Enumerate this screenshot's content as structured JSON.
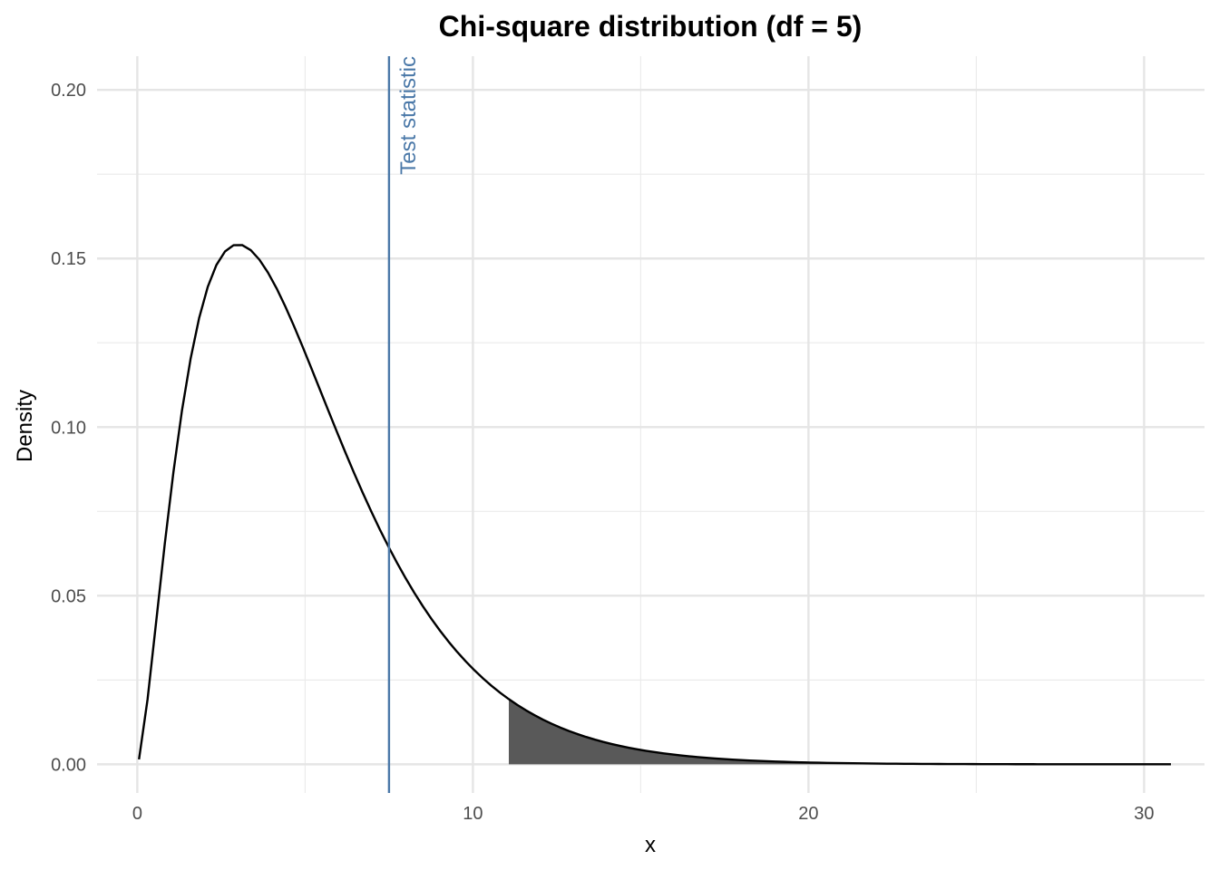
{
  "chart_data": {
    "type": "area",
    "title": "Chi-square distribution (df = 5)",
    "xlabel": "x",
    "ylabel": "Density",
    "df": 5,
    "xlim": [
      -1.2,
      31.8
    ],
    "ylim": [
      -0.0085,
      0.21
    ],
    "x_ticks": [
      0,
      10,
      20,
      30
    ],
    "x_tick_labels": [
      "0",
      "10",
      "20",
      "30"
    ],
    "y_ticks": [
      0,
      0.05,
      0.1,
      0.15,
      0.2
    ],
    "y_tick_labels": [
      "0.00",
      "0.05",
      "0.10",
      "0.15",
      "0.20"
    ],
    "x_minor_ticks": [
      5,
      15,
      25
    ],
    "y_minor_ticks": [
      0.025,
      0.075,
      0.125,
      0.175
    ],
    "grid": true,
    "curve_range": [
      0.05,
      30.8
    ],
    "shaded_region": {
      "from": 11.07,
      "to": 30.8,
      "color": "#595959"
    },
    "test_statistic": {
      "x": 7.5,
      "label": "Test statistic",
      "color": "#4a78a8"
    },
    "series": [
      {
        "x": [
          0.05,
          0.4,
          0.8,
          1.2,
          1.6,
          2.0,
          2.4,
          2.8,
          3.0,
          3.2,
          3.6,
          4.0,
          4.5,
          5.0,
          6.0,
          7.0,
          7.5,
          8.0,
          9.0,
          10.0,
          11.0,
          12.0,
          13.0,
          14.0,
          15.0,
          16.0,
          18.0,
          20.0,
          22.0,
          25.0,
          28.0,
          30.8
        ],
        "y": [
          0.001,
          0.022,
          0.063,
          0.1,
          0.13,
          0.144,
          0.152,
          0.154,
          0.154,
          0.153,
          0.149,
          0.144,
          0.134,
          0.122,
          0.097,
          0.074,
          0.064,
          0.055,
          0.04,
          0.028,
          0.019,
          0.013,
          0.009,
          0.006,
          0.004,
          0.003,
          0.001,
          0.0005,
          0.0003,
          0.0001,
          0.0,
          0.0
        ],
        "color": "#000000"
      }
    ]
  }
}
